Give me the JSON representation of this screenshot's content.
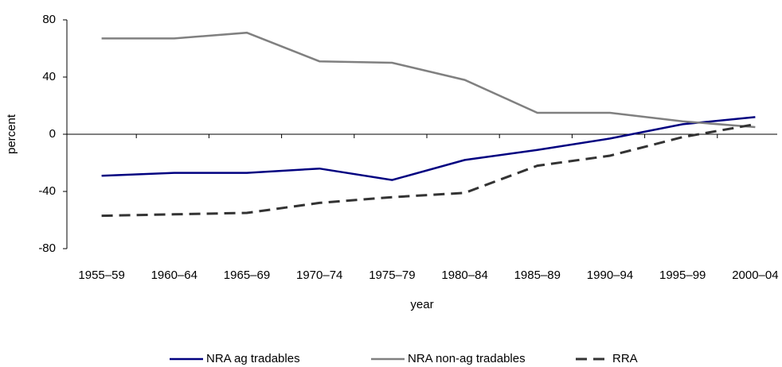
{
  "chart_data": {
    "type": "line",
    "x_label": "year",
    "y_label": "percent",
    "categories": [
      "1955–59",
      "1960–64",
      "1965–69",
      "1970–74",
      "1975–79",
      "1980–84",
      "1985–89",
      "1990–94",
      "1995–99",
      "2000–04"
    ],
    "series": [
      {
        "name": "NRA ag tradables",
        "color": "#000080",
        "dashed": false,
        "values": [
          -29,
          -27,
          -27,
          -24,
          -32,
          -18,
          -11,
          -3,
          7,
          12
        ]
      },
      {
        "name": "NRA non-ag tradables",
        "color": "#808080",
        "dashed": false,
        "values": [
          67,
          67,
          71,
          51,
          50,
          38,
          15,
          15,
          9,
          5
        ]
      },
      {
        "name": "RRA",
        "color": "#333333",
        "dashed": true,
        "values": [
          -57,
          -56,
          -55,
          -48,
          -44,
          -41,
          -22,
          -15,
          -2,
          7
        ]
      }
    ],
    "ylim": [
      -80,
      80
    ],
    "yticks": [
      80,
      40,
      0,
      -40,
      -80
    ],
    "grid": false,
    "legend": "bottom"
  }
}
